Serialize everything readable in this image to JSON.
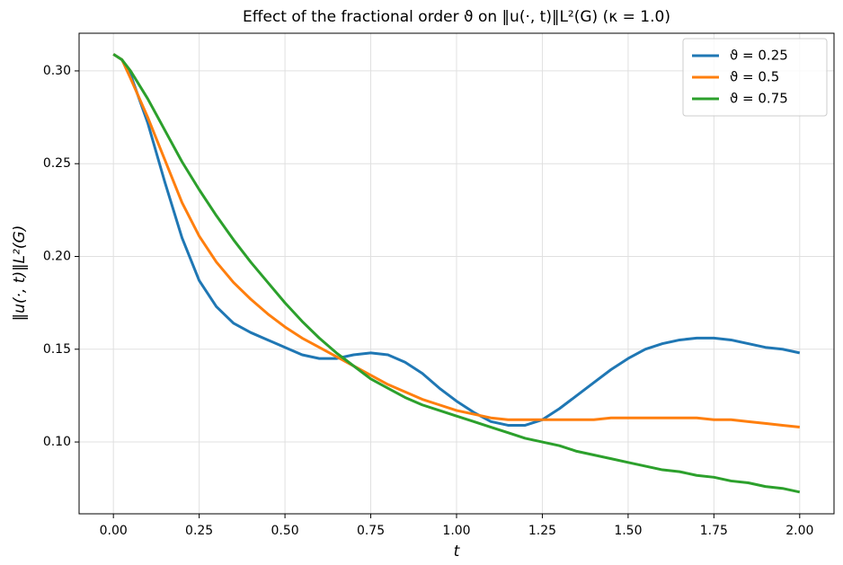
{
  "chart_data": {
    "type": "line",
    "title": "Effect of the fractional order ϑ on ‖u(·, t)‖L²(G) (κ = 1.0)",
    "x_label": "t",
    "y_label": "‖u(·, t)‖L²(G)",
    "x": [
      0,
      0.025,
      0.05,
      0.1,
      0.15,
      0.2,
      0.25,
      0.3,
      0.35,
      0.4,
      0.45,
      0.5,
      0.55,
      0.6,
      0.65,
      0.7,
      0.75,
      0.8,
      0.85,
      0.9,
      0.95,
      1.0,
      1.05,
      1.1,
      1.15,
      1.2,
      1.25,
      1.3,
      1.35,
      1.4,
      1.45,
      1.5,
      1.55,
      1.6,
      1.65,
      1.7,
      1.75,
      1.8,
      1.85,
      1.9,
      1.95,
      2.0
    ],
    "series": [
      {
        "name": "ϑ = 0.25",
        "color": "#1f77b4",
        "values": [
          0.309,
          0.306,
          0.298,
          0.272,
          0.24,
          0.21,
          0.187,
          0.173,
          0.164,
          0.159,
          0.155,
          0.151,
          0.147,
          0.145,
          0.145,
          0.147,
          0.148,
          0.147,
          0.143,
          0.137,
          0.129,
          0.122,
          0.116,
          0.111,
          0.109,
          0.109,
          0.112,
          0.118,
          0.125,
          0.132,
          0.139,
          0.145,
          0.15,
          0.153,
          0.155,
          0.156,
          0.156,
          0.155,
          0.153,
          0.151,
          0.15,
          0.148
        ]
      },
      {
        "name": "ϑ = 0.5",
        "color": "#ff7f0e",
        "values": [
          0.309,
          0.306,
          0.296,
          0.275,
          0.252,
          0.229,
          0.211,
          0.197,
          0.186,
          0.177,
          0.169,
          0.162,
          0.156,
          0.151,
          0.146,
          0.141,
          0.136,
          0.131,
          0.127,
          0.123,
          0.12,
          0.117,
          0.115,
          0.113,
          0.112,
          0.112,
          0.112,
          0.112,
          0.112,
          0.112,
          0.113,
          0.113,
          0.113,
          0.113,
          0.113,
          0.113,
          0.112,
          0.112,
          0.111,
          0.11,
          0.109,
          0.108
        ]
      },
      {
        "name": "ϑ = 0.75",
        "color": "#2ca02c",
        "values": [
          0.309,
          0.306,
          0.3,
          0.285,
          0.268,
          0.251,
          0.236,
          0.222,
          0.209,
          0.197,
          0.186,
          0.175,
          0.165,
          0.156,
          0.148,
          0.141,
          0.134,
          0.129,
          0.124,
          0.12,
          0.117,
          0.114,
          0.111,
          0.108,
          0.105,
          0.102,
          0.1,
          0.098,
          0.095,
          0.093,
          0.091,
          0.089,
          0.087,
          0.085,
          0.084,
          0.082,
          0.081,
          0.079,
          0.078,
          0.076,
          0.075,
          0.073
        ]
      }
    ],
    "xlim": [
      -0.1,
      2.1
    ],
    "ylim": [
      0.0613,
      0.3203
    ],
    "xticks": [
      {
        "value": 0,
        "label": "0.00"
      },
      {
        "value": 0.25,
        "label": "0.25"
      },
      {
        "value": 0.5,
        "label": "0.50"
      },
      {
        "value": 0.75,
        "label": "0.75"
      },
      {
        "value": 1,
        "label": "1.00"
      },
      {
        "value": 1.25,
        "label": "1.25"
      },
      {
        "value": 1.5,
        "label": "1.50"
      },
      {
        "value": 1.75,
        "label": "1.75"
      },
      {
        "value": 2,
        "label": "2.00"
      }
    ],
    "yticks": [
      {
        "value": 0.1,
        "label": "0.10"
      },
      {
        "value": 0.15,
        "label": "0.15"
      },
      {
        "value": 0.2,
        "label": "0.20"
      },
      {
        "value": 0.25,
        "label": "0.25"
      },
      {
        "value": 0.3,
        "label": "0.30"
      }
    ],
    "grid": true,
    "legend": "upper right"
  }
}
